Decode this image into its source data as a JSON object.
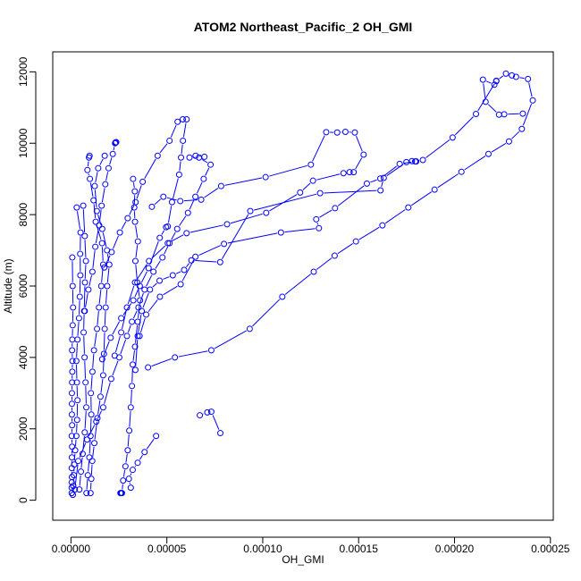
{
  "chart_data": {
    "type": "line",
    "title": "ATOM2 Northeast_Pacific_2 OH_GMI",
    "xlabel": "OH_GMI",
    "ylabel": "Altitude (m)",
    "xlim": [
      -9.5e-06,
      0.0002515
    ],
    "ylim": [
      -560,
      12560
    ],
    "x_ticks": [
      0,
      5e-05,
      0.0001,
      0.00015,
      0.0002,
      0.00025
    ],
    "x_tick_labels": [
      "0.00000",
      "0.00005",
      "0.00010",
      "0.00015",
      "0.00020",
      "0.00025"
    ],
    "y_ticks": [
      0,
      2000,
      4000,
      6000,
      8000,
      10000,
      12000
    ],
    "y_tick_labels": [
      "0",
      "2000",
      "4000",
      "6000",
      "8000",
      "10000",
      "12000"
    ],
    "grid": false,
    "legend": "none",
    "colors": {
      "series": "#0000ff",
      "axis": "#000000"
    },
    "series": [
      {
        "values": [
          [
            4e-07,
            200
          ],
          [
            4e-07,
            350
          ],
          [
            4e-07,
            500
          ],
          [
            5e-07,
            650
          ],
          [
            4e-07,
            900
          ],
          [
            5e-07,
            1200
          ],
          [
            6e-07,
            1500
          ],
          [
            4e-07,
            1800
          ],
          [
            6e-07,
            2100
          ],
          [
            5e-07,
            2400
          ],
          [
            5e-07,
            2700
          ],
          [
            5e-07,
            3000
          ],
          [
            6e-07,
            3300
          ],
          [
            7e-07,
            3600
          ],
          [
            8e-07,
            3900
          ],
          [
            6e-07,
            4200
          ],
          [
            7e-07,
            4500
          ],
          [
            9e-07,
            4900
          ],
          [
            1.1e-06,
            5400
          ],
          [
            9e-07,
            6000
          ],
          [
            7e-07,
            6800
          ]
        ]
      },
      {
        "values": [
          [
            1e-06,
            150
          ],
          [
            1.2e-06,
            400
          ],
          [
            1.5e-06,
            700
          ],
          [
            1.7e-06,
            1000
          ],
          [
            2.2e-06,
            1400
          ],
          [
            2.8e-06,
            1800
          ],
          [
            3.2e-06,
            2250
          ],
          [
            3.4e-06,
            2800
          ],
          [
            3.1e-06,
            3300
          ],
          [
            2.8e-06,
            3900
          ],
          [
            3.4e-06,
            4500
          ],
          [
            4.2e-06,
            5100
          ],
          [
            4.6e-06,
            5700
          ],
          [
            4.9e-06,
            6300
          ],
          [
            4.8e-06,
            6900
          ],
          [
            5e-06,
            7500
          ],
          [
            3e-06,
            8200
          ]
        ]
      },
      {
        "values": [
          [
            4.4e-06,
            300
          ],
          [
            5.2e-06,
            800
          ],
          [
            6.1e-06,
            1300
          ],
          [
            7.2e-06,
            1900
          ],
          [
            8e-06,
            2600
          ],
          [
            7.6e-06,
            3300
          ],
          [
            7.1e-06,
            4000
          ],
          [
            6.6e-06,
            4700
          ],
          [
            6.9e-06,
            5300
          ],
          [
            7.3e-06,
            6100
          ],
          [
            7.8e-06,
            6700
          ],
          [
            7.2e-06,
            7400
          ],
          [
            6.4e-06,
            8250
          ]
        ]
      },
      {
        "values": [
          [
            8.1e-06,
            200
          ],
          [
            8.8e-06,
            700
          ],
          [
            9.6e-06,
            1200
          ],
          [
            1.02e-05,
            1800
          ],
          [
            1.06e-05,
            2400
          ],
          [
            1.04e-05,
            3000
          ],
          [
            1.12e-05,
            3600
          ],
          [
            1.2e-05,
            4200
          ],
          [
            1.36e-05,
            4800
          ],
          [
            1.46e-05,
            5400
          ],
          [
            1.58e-05,
            6000
          ],
          [
            1.68e-05,
            6600
          ],
          [
            1.62e-05,
            7200
          ],
          [
            1.29e-05,
            7800
          ],
          [
            1.18e-05,
            8400
          ],
          [
            9.9e-06,
            9000
          ],
          [
            8.6e-06,
            9250
          ],
          [
            9.4e-06,
            9600
          ],
          [
            9.7e-06,
            9650
          ]
        ]
      },
      {
        "values": [
          [
            1.02e-05,
            200
          ],
          [
            1.06e-05,
            600
          ],
          [
            1.11e-05,
            1100
          ],
          [
            1.22e-05,
            1600
          ],
          [
            1.38e-05,
            2300
          ],
          [
            1.54e-05,
            2900
          ],
          [
            1.68e-05,
            3500
          ],
          [
            1.72e-05,
            4100
          ],
          [
            1.76e-05,
            4800
          ],
          [
            1.81e-05,
            5400
          ],
          [
            1.89e-05,
            6000
          ],
          [
            2e-05,
            6600
          ],
          [
            1.88e-05,
            7000
          ],
          [
            1.63e-05,
            7600
          ],
          [
            1.35e-05,
            8100
          ],
          [
            1.24e-05,
            8800
          ],
          [
            1.42e-05,
            9300
          ],
          [
            1.76e-05,
            9650
          ]
        ]
      },
      {
        "values": [
          [
            2.58e-05,
            200
          ],
          [
            2.62e-05,
            200
          ],
          [
            2.66e-05,
            200
          ],
          [
            2.72e-05,
            550
          ],
          [
            2.84e-05,
            950
          ],
          [
            2.96e-05,
            1400
          ],
          [
            3.04e-05,
            1950
          ],
          [
            3.12e-05,
            2600
          ],
          [
            3.18e-05,
            3200
          ],
          [
            3.22e-05,
            3800
          ],
          [
            3.34e-05,
            4300
          ],
          [
            3.48e-05,
            5000
          ],
          [
            3.6e-05,
            5600
          ],
          [
            3.46e-05,
            6100
          ],
          [
            3.36e-05,
            6700
          ],
          [
            3.49e-05,
            7250
          ],
          [
            3.34e-05,
            7800
          ],
          [
            3.3e-05,
            8200
          ],
          [
            3.33e-05,
            8650
          ],
          [
            3.24e-05,
            9000
          ]
        ]
      },
      {
        "values": [
          [
            2e-06,
            300
          ],
          [
            3.8e-06,
            1100
          ],
          [
            8.4e-06,
            1700
          ],
          [
            1.32e-05,
            2200
          ],
          [
            1.68e-05,
            2600
          ],
          [
            2.1e-05,
            3400
          ],
          [
            2.52e-05,
            4000
          ],
          [
            2.92e-05,
            4600
          ],
          [
            3.18e-05,
            5000
          ],
          [
            3.52e-05,
            5400
          ],
          [
            3.84e-05,
            5900
          ],
          [
            4.3e-05,
            6400
          ],
          [
            4.77e-05,
            6800
          ],
          [
            5.14e-05,
            7200
          ],
          [
            5.54e-05,
            7600
          ],
          [
            6.1e-05,
            8050
          ],
          [
            6.49e-05,
            8500
          ],
          [
            6.92e-05,
            9000
          ],
          [
            7.28e-05,
            9400
          ],
          [
            6.68e-05,
            9600
          ],
          [
            6.18e-05,
            9600
          ],
          [
            6.5e-05,
            9650
          ],
          [
            6.96e-05,
            9620
          ]
        ]
      },
      {
        "values": [
          [
            2.36e-05,
            10030
          ],
          [
            2.32e-05,
            10020
          ],
          [
            2.3e-05,
            10000
          ],
          [
            2.18e-05,
            9700
          ],
          [
            1.96e-05,
            9300
          ],
          [
            1.79e-05,
            8850
          ],
          [
            1.6e-05,
            8250
          ],
          [
            1.47e-05,
            7700
          ],
          [
            1.27e-05,
            7100
          ],
          [
            1.12e-05,
            6400
          ],
          [
            9.1e-06,
            5900
          ],
          [
            7.2e-06,
            5300
          ]
        ]
      },
      {
        "values": [
          [
            4.44e-05,
            1800
          ],
          [
            3.84e-05,
            1350
          ],
          [
            3.48e-05,
            1050
          ],
          [
            3.22e-05,
            850
          ],
          [
            3.02e-05,
            600
          ],
          [
            3.12e-05,
            350
          ]
        ]
      },
      {
        "values": [
          [
            7.79e-05,
            1880
          ],
          [
            7.32e-05,
            2480
          ],
          [
            7.11e-05,
            2460
          ],
          [
            6.72e-05,
            2380
          ]
        ]
      },
      {
        "values": [
          [
            4.02e-05,
            3720
          ],
          [
            5.42e-05,
            4000
          ],
          [
            7.32e-05,
            4200
          ],
          [
            9.32e-05,
            4800
          ],
          [
            0.0001102,
            5700
          ],
          [
            0.0001266,
            6400
          ],
          [
            0.0001375,
            6850
          ],
          [
            0.0001486,
            7250
          ],
          [
            0.0001624,
            7700
          ],
          [
            0.0001759,
            8200
          ],
          [
            0.0001896,
            8700
          ],
          [
            0.0002036,
            9200
          ],
          [
            0.0002177,
            9700
          ],
          [
            0.0002284,
            10050
          ],
          [
            0.0002351,
            10400
          ],
          [
            0.0002408,
            11200
          ],
          [
            0.0002383,
            11800
          ],
          [
            0.0002321,
            11860
          ],
          [
            0.0002299,
            11900
          ],
          [
            0.0002268,
            11950
          ],
          [
            0.0002218,
            11740
          ],
          [
            0.0002208,
            11640
          ],
          [
            0.0002148,
            11780
          ],
          [
            0.0002162,
            11160
          ],
          [
            0.0002232,
            10800
          ],
          [
            0.0002259,
            10810
          ],
          [
            0.0002356,
            10830
          ]
        ]
      },
      {
        "values": [
          [
            3.36e-05,
            3650
          ],
          [
            3.48e-05,
            4600
          ],
          [
            3.69e-05,
            5300
          ],
          [
            4.12e-05,
            5900
          ],
          [
            4.62e-05,
            6150
          ],
          [
            5.31e-05,
            6300
          ],
          [
            5.9e-05,
            6450
          ],
          [
            6.28e-05,
            6720
          ],
          [
            7.78e-05,
            6670
          ],
          [
            9.35e-05,
            8100
          ],
          [
            0.0001299,
            8600
          ],
          [
            0.0001614,
            8680
          ],
          [
            0.0001631,
            9030
          ],
          [
            0.0001749,
            9470
          ],
          [
            0.0001778,
            9500
          ],
          [
            0.00018,
            9490
          ],
          [
            0.0001835,
            9530
          ],
          [
            0.000199,
            10160
          ],
          [
            0.0002112,
            10820
          ],
          [
            0.0002218,
            11750
          ]
        ]
      },
      {
        "values": [
          [
            3.58e-05,
            4600
          ],
          [
            3.92e-05,
            5200
          ],
          [
            4.64e-05,
            5700
          ],
          [
            5.72e-05,
            6050
          ],
          [
            6.49e-05,
            6820
          ],
          [
            7.98e-05,
            7180
          ],
          [
            0.0001095,
            7500
          ],
          [
            0.0001293,
            7620
          ],
          [
            0.0001279,
            7870
          ],
          [
            0.0001377,
            8180
          ],
          [
            0.0001543,
            8870
          ],
          [
            0.0001613,
            9010
          ],
          [
            0.0001714,
            9420
          ],
          [
            0.0001795,
            9490
          ]
        ]
      },
      {
        "values": [
          [
            2.28e-05,
            4050
          ],
          [
            2.62e-05,
            4700
          ],
          [
            2.92e-05,
            5400
          ],
          [
            3.34e-05,
            6100
          ],
          [
            4.07e-05,
            6700
          ],
          [
            5.05e-05,
            7200
          ],
          [
            6.03e-05,
            7480
          ],
          [
            8.14e-05,
            7730
          ],
          [
            0.0001018,
            8050
          ],
          [
            0.0001195,
            8620
          ],
          [
            0.0001262,
            8950
          ],
          [
            0.0001421,
            9160
          ],
          [
            0.0001453,
            9190
          ],
          [
            0.0001474,
            9190
          ],
          [
            0.0001526,
            9680
          ],
          [
            0.000148,
            10300
          ],
          [
            0.0001431,
            10320
          ],
          [
            0.0001388,
            10300
          ],
          [
            0.0001331,
            10310
          ],
          [
            0.0001251,
            9400
          ],
          [
            0.0001015,
            9050
          ],
          [
            7.83e-05,
            8800
          ],
          [
            6.79e-05,
            8420
          ],
          [
            5.7e-05,
            8380
          ],
          [
            4.82e-05,
            8500
          ],
          [
            4.22e-05,
            8220
          ]
        ]
      },
      {
        "values": [
          [
            1.63e-05,
            3950
          ],
          [
            2.07e-05,
            4550
          ],
          [
            2.62e-05,
            5100
          ],
          [
            3.25e-05,
            5600
          ],
          [
            3.59e-05,
            6000
          ],
          [
            4.05e-05,
            6500
          ],
          [
            4.63e-05,
            7350
          ],
          [
            4.96e-05,
            7650
          ],
          [
            5.05e-05,
            7670
          ],
          [
            5.27e-05,
            8350
          ],
          [
            5.64e-05,
            9120
          ],
          [
            5.74e-05,
            9600
          ],
          [
            5.84e-05,
            10070
          ],
          [
            6.03e-05,
            10670
          ],
          [
            5.83e-05,
            10670
          ],
          [
            5.56e-05,
            10600
          ],
          [
            5.14e-05,
            10070
          ],
          [
            4.52e-05,
            9650
          ],
          [
            3.74e-05,
            8920
          ],
          [
            3.37e-05,
            8350
          ],
          [
            2.96e-05,
            7900
          ],
          [
            2.55e-05,
            7500
          ],
          [
            2.12e-05,
            6950
          ],
          [
            1.74e-05,
            6520
          ]
        ]
      }
    ]
  }
}
